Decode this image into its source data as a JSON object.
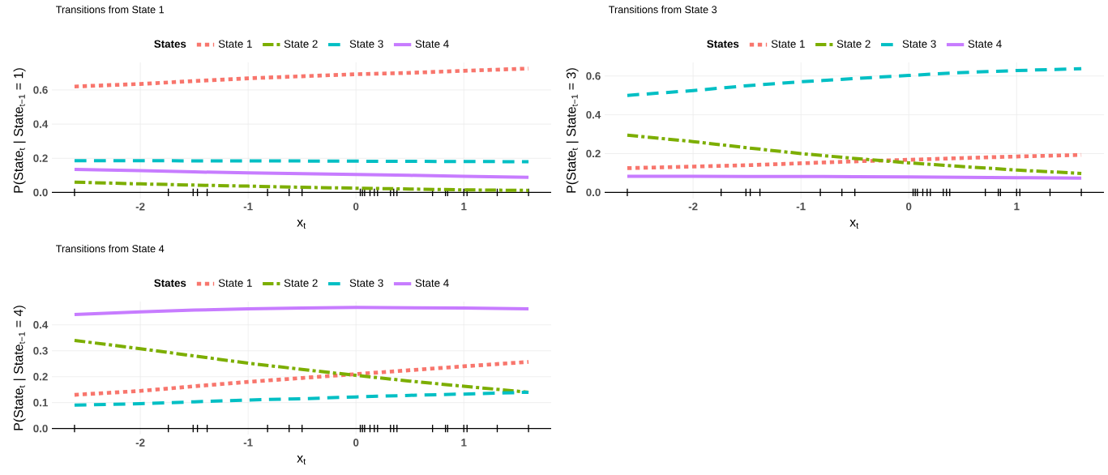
{
  "chart_data": [
    {
      "type": "line",
      "title": "Transitions from State 1",
      "legend_title": "States",
      "legend": "top",
      "grid": true,
      "xlabel": "x$_{t}$",
      "ylabel": "P(State$_{t}$ | State$_{t−1}$ = 1)",
      "x": [
        -2.61,
        -2,
        -1.5,
        -1,
        -0.5,
        0,
        0.5,
        1,
        1.6
      ],
      "xlim": [
        -2.82,
        1.81
      ],
      "ylim": [
        -0.036,
        0.761
      ],
      "xticks": [
        -2,
        -1,
        0,
        1,
        {
          "value": -2.61,
          "label": null
        },
        {
          "value": -1.74,
          "label": null
        },
        {
          "value": -1.51,
          "label": null
        },
        {
          "value": -1.47,
          "label": null
        },
        {
          "value": -1.38,
          "label": null
        },
        {
          "value": -0.82,
          "label": null
        },
        {
          "value": -0.62,
          "label": null
        },
        {
          "value": -0.5,
          "label": null
        },
        {
          "value": 0.04,
          "label": null
        },
        {
          "value": 0.06,
          "label": null
        },
        {
          "value": 0.08,
          "label": null
        },
        {
          "value": 0.13,
          "label": null
        },
        {
          "value": 0.17,
          "label": null
        },
        {
          "value": 0.2,
          "label": null
        },
        {
          "value": 0.32,
          "label": null
        },
        {
          "value": 0.35,
          "label": null
        },
        {
          "value": 0.38,
          "label": null
        },
        {
          "value": 0.71,
          "label": null
        },
        {
          "value": 0.83,
          "label": null
        },
        {
          "value": 0.85,
          "label": null
        },
        {
          "value": 1.0,
          "label": null
        },
        {
          "value": 1.03,
          "label": null
        },
        {
          "value": 1.31,
          "label": null
        },
        {
          "value": 1.6,
          "label": null
        }
      ],
      "yticks": [
        {
          "value": 0,
          "label": "0.0"
        },
        {
          "value": 0.2,
          "label": "0.2"
        },
        {
          "value": 0.4,
          "label": "0.4"
        },
        {
          "value": 0.6,
          "label": "0.6"
        }
      ],
      "series": [
        {
          "name": "State 1",
          "color": "#f8766d",
          "line_style": "dotted",
          "values": [
            0.62,
            0.635,
            0.652,
            0.668,
            0.68,
            0.692,
            0.7,
            0.712,
            0.725
          ]
        },
        {
          "name": "State 2",
          "color": "#7cae00",
          "line_style": "dashdot",
          "values": [
            0.06,
            0.05,
            0.043,
            0.037,
            0.03,
            0.025,
            0.02,
            0.015,
            0.012
          ]
        },
        {
          "name": "State 3",
          "color": "#00bfc4",
          "line_style": "dashed",
          "values": [
            0.186,
            0.186,
            0.185,
            0.185,
            0.184,
            0.183,
            0.182,
            0.181,
            0.18
          ]
        },
        {
          "name": "State 4",
          "color": "#c77cff",
          "line_style": "solid",
          "values": [
            0.135,
            0.128,
            0.12,
            0.115,
            0.11,
            0.105,
            0.1,
            0.095,
            0.088
          ]
        }
      ]
    },
    {
      "type": "line",
      "title": "Transitions from State 3",
      "legend_title": "States",
      "legend": "top",
      "grid": true,
      "xlabel": "x$_{t}$",
      "ylabel": "P(State$_{t}$ | State$_{t−1}$ = 3)",
      "x": [
        -2.61,
        -2,
        -1.5,
        -1,
        -0.5,
        0,
        0.5,
        1,
        1.6
      ],
      "xlim": [
        -2.82,
        1.81
      ],
      "ylim": [
        -0.032,
        0.67
      ],
      "xticks": [
        -2,
        -1,
        0,
        1,
        {
          "value": -2.61,
          "label": null
        },
        {
          "value": -1.74,
          "label": null
        },
        {
          "value": -1.51,
          "label": null
        },
        {
          "value": -1.47,
          "label": null
        },
        {
          "value": -1.38,
          "label": null
        },
        {
          "value": -0.82,
          "label": null
        },
        {
          "value": -0.62,
          "label": null
        },
        {
          "value": -0.5,
          "label": null
        },
        {
          "value": 0.04,
          "label": null
        },
        {
          "value": 0.06,
          "label": null
        },
        {
          "value": 0.08,
          "label": null
        },
        {
          "value": 0.13,
          "label": null
        },
        {
          "value": 0.17,
          "label": null
        },
        {
          "value": 0.2,
          "label": null
        },
        {
          "value": 0.32,
          "label": null
        },
        {
          "value": 0.35,
          "label": null
        },
        {
          "value": 0.38,
          "label": null
        },
        {
          "value": 0.71,
          "label": null
        },
        {
          "value": 0.83,
          "label": null
        },
        {
          "value": 0.85,
          "label": null
        },
        {
          "value": 1.0,
          "label": null
        },
        {
          "value": 1.03,
          "label": null
        },
        {
          "value": 1.31,
          "label": null
        },
        {
          "value": 1.6,
          "label": null
        }
      ],
      "yticks": [
        {
          "value": 0,
          "label": "0.0"
        },
        {
          "value": 0.2,
          "label": "0.2"
        },
        {
          "value": 0.4,
          "label": "0.4"
        },
        {
          "value": 0.6,
          "label": "0.6"
        }
      ],
      "series": [
        {
          "name": "State 1",
          "color": "#f8766d",
          "line_style": "dotted",
          "values": [
            0.125,
            0.133,
            0.14,
            0.15,
            0.16,
            0.168,
            0.177,
            0.185,
            0.193
          ]
        },
        {
          "name": "State 2",
          "color": "#7cae00",
          "line_style": "dashdot",
          "values": [
            0.295,
            0.262,
            0.23,
            0.2,
            0.175,
            0.152,
            0.133,
            0.115,
            0.098
          ]
        },
        {
          "name": "State 3",
          "color": "#00bfc4",
          "line_style": "dashed",
          "values": [
            0.5,
            0.525,
            0.55,
            0.57,
            0.587,
            0.603,
            0.618,
            0.628,
            0.638
          ]
        },
        {
          "name": "State 4",
          "color": "#c77cff",
          "line_style": "solid",
          "values": [
            0.083,
            0.083,
            0.082,
            0.082,
            0.081,
            0.08,
            0.078,
            0.076,
            0.074
          ]
        }
      ]
    },
    {
      "type": "line",
      "title": "Transitions from State 4",
      "legend_title": "States",
      "legend": "top",
      "grid": true,
      "xlabel": "x$_{t}$",
      "ylabel": "P(State$_{t}$ | State$_{t−1}$ = 4)",
      "x": [
        -2.61,
        -2,
        -1.5,
        -1,
        -0.5,
        0,
        0.5,
        1,
        1.6
      ],
      "xlim": [
        -2.82,
        1.81
      ],
      "ylim": [
        -0.023,
        0.49
      ],
      "xticks": [
        -2,
        -1,
        0,
        1,
        {
          "value": -2.61,
          "label": null
        },
        {
          "value": -1.74,
          "label": null
        },
        {
          "value": -1.51,
          "label": null
        },
        {
          "value": -1.47,
          "label": null
        },
        {
          "value": -1.38,
          "label": null
        },
        {
          "value": -0.82,
          "label": null
        },
        {
          "value": -0.62,
          "label": null
        },
        {
          "value": -0.5,
          "label": null
        },
        {
          "value": 0.04,
          "label": null
        },
        {
          "value": 0.06,
          "label": null
        },
        {
          "value": 0.08,
          "label": null
        },
        {
          "value": 0.13,
          "label": null
        },
        {
          "value": 0.17,
          "label": null
        },
        {
          "value": 0.2,
          "label": null
        },
        {
          "value": 0.32,
          "label": null
        },
        {
          "value": 0.35,
          "label": null
        },
        {
          "value": 0.38,
          "label": null
        },
        {
          "value": 0.71,
          "label": null
        },
        {
          "value": 0.83,
          "label": null
        },
        {
          "value": 0.85,
          "label": null
        },
        {
          "value": 1.0,
          "label": null
        },
        {
          "value": 1.03,
          "label": null
        },
        {
          "value": 1.31,
          "label": null
        },
        {
          "value": 1.6,
          "label": null
        }
      ],
      "yticks": [
        {
          "value": 0,
          "label": "0.0"
        },
        {
          "value": 0.1,
          "label": "0.1"
        },
        {
          "value": 0.2,
          "label": "0.2"
        },
        {
          "value": 0.3,
          "label": "0.3"
        },
        {
          "value": 0.4,
          "label": "0.4"
        }
      ],
      "series": [
        {
          "name": "State 1",
          "color": "#f8766d",
          "line_style": "dotted",
          "values": [
            0.13,
            0.145,
            0.163,
            0.18,
            0.195,
            0.21,
            0.225,
            0.24,
            0.257
          ]
        },
        {
          "name": "State 2",
          "color": "#7cae00",
          "line_style": "dashdot",
          "values": [
            0.34,
            0.308,
            0.28,
            0.252,
            0.228,
            0.205,
            0.183,
            0.163,
            0.14
          ]
        },
        {
          "name": "State 3",
          "color": "#00bfc4",
          "line_style": "dashed",
          "values": [
            0.09,
            0.096,
            0.103,
            0.11,
            0.115,
            0.122,
            0.128,
            0.133,
            0.14
          ]
        },
        {
          "name": "State 4",
          "color": "#c77cff",
          "line_style": "solid",
          "values": [
            0.44,
            0.45,
            0.457,
            0.462,
            0.465,
            0.467,
            0.466,
            0.465,
            0.462
          ]
        }
      ]
    }
  ]
}
